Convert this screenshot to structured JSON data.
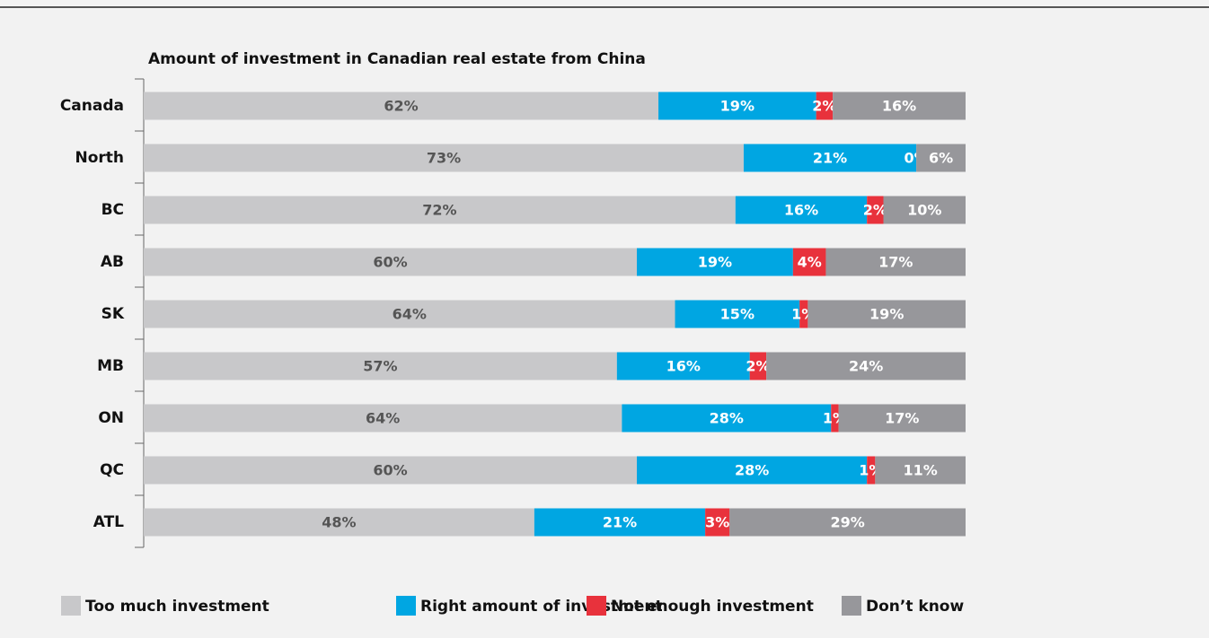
{
  "chart_data": {
    "type": "bar",
    "orientation": "horizontal",
    "stacked": "percent",
    "title": "Amount of investment in Canadian real estate from China",
    "categories": [
      "Canada",
      "North",
      "BC",
      "AB",
      "SK",
      "MB",
      "ON",
      "QC",
      "ATL"
    ],
    "series": [
      {
        "name": "Too much investment",
        "color": "#c8c8ca",
        "values": [
          62,
          73,
          72,
          60,
          64,
          57,
          64,
          60,
          48
        ],
        "value_labels": [
          "62%",
          "73%",
          "72%",
          "60%",
          "64%",
          "57%",
          "64%",
          "60%",
          "48%"
        ]
      },
      {
        "name": "Right amount of investment",
        "color": "#00a6e2",
        "values": [
          19,
          21,
          16,
          19,
          15,
          16,
          28,
          28,
          21
        ],
        "value_labels": [
          "19%",
          "21%",
          "16%",
          "19%",
          "15%",
          "16%",
          "28%",
          "28%",
          "21%"
        ]
      },
      {
        "name": "Not enough investment",
        "color": "#e8323c",
        "values": [
          2,
          0,
          2,
          4,
          1,
          2,
          1,
          1,
          3
        ],
        "value_labels": [
          "2%",
          "0%",
          "2%",
          "4%",
          "1%",
          "2%",
          "1%",
          "1%",
          "3%"
        ]
      },
      {
        "name": "Don’t know",
        "color": "#97979b",
        "values": [
          16,
          6,
          10,
          17,
          19,
          24,
          17,
          11,
          29
        ],
        "value_labels": [
          "16%",
          "6%",
          "10%",
          "17%",
          "19%",
          "24%",
          "17%",
          "11%",
          "29%"
        ]
      }
    ],
    "legend": "bottom"
  }
}
